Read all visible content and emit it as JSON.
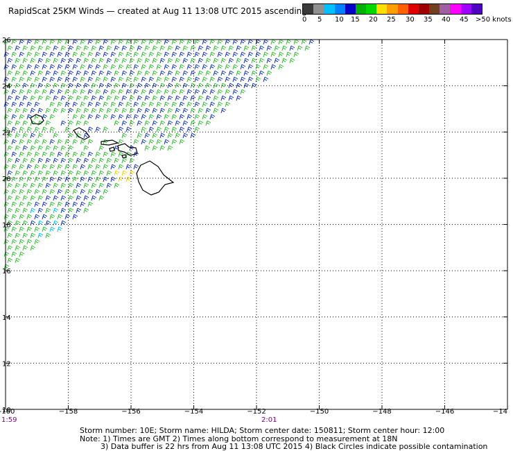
{
  "title": "RapidScat 25KM Winds — created at Aug 11 13:08 UTC 2015 ascending",
  "legend": {
    "colors": [
      "#3a3a3a",
      "#909090",
      "#00c0ff",
      "#0080ff",
      "#0000c8",
      "#00b000",
      "#00d800",
      "#ffe000",
      "#ffa000",
      "#ff6000",
      "#e00000",
      "#a00000",
      "#704020",
      "#a060a0",
      "#ff00ff",
      "#a000ff",
      "#5000c0"
    ],
    "labels": [
      "0",
      "5",
      "10",
      "15",
      "20",
      "25",
      "30",
      "35",
      "40",
      "45",
      ">50 knots"
    ]
  },
  "map": {
    "lon_range": [
      -160,
      -144
    ],
    "lat_range": [
      10,
      26
    ],
    "lon_ticks": [
      "-160",
      "−158",
      "−156",
      "−154",
      "−152",
      "−150",
      "−148",
      "−146",
      "−14"
    ],
    "lat_ticks": [
      "26",
      "24",
      "22",
      "20",
      "18",
      "16",
      "14",
      "12",
      "10"
    ],
    "wind_colors": {
      "green": "#2ac02a",
      "blue": "#1030d0",
      "lightblue": "#00c0ff",
      "yellow": "#f0d000"
    }
  },
  "times": {
    "left": "1:59",
    "mid": "2:01"
  },
  "footer": {
    "line1": "Storm number: 10E;  Storm name: HILDA;  Storm center date: 150811;  Storm center hour: 12:00",
    "line2": "Note: 1) Times are GMT  2) Times along bottom correspond to measurement at 18N",
    "line3": "3) Data buffer is 22 hrs from Aug 11 13:08 UTC 2015   4) Black Circles indicate possible contamination"
  }
}
